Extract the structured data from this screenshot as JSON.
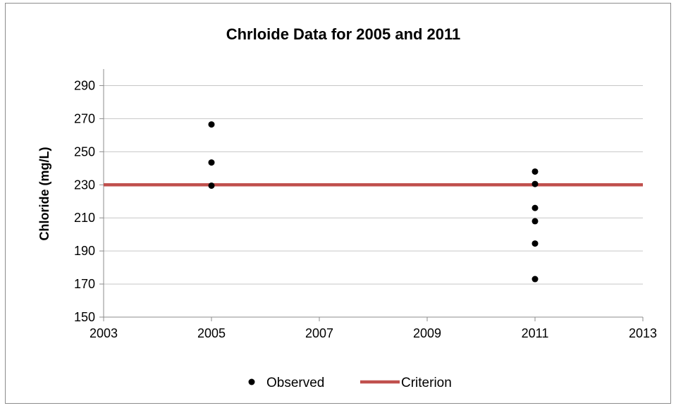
{
  "chart_data": {
    "type": "scatter",
    "title": "Chrloide Data for 2005 and 2011",
    "xlabel": "",
    "ylabel": "Chloride (mg/L)",
    "xlim": [
      2003,
      2013
    ],
    "ylim": [
      150,
      300
    ],
    "xticks": [
      2003,
      2005,
      2007,
      2009,
      2011,
      2013
    ],
    "yticks": [
      150,
      170,
      190,
      210,
      230,
      250,
      270,
      290
    ],
    "grid": "horizontal",
    "legend_position": "bottom",
    "series": [
      {
        "name": "Observed",
        "kind": "scatter",
        "color": "#000000",
        "points": [
          {
            "x": 2005,
            "y": 266.5
          },
          {
            "x": 2005,
            "y": 243.5
          },
          {
            "x": 2005,
            "y": 229.5
          },
          {
            "x": 2011,
            "y": 238
          },
          {
            "x": 2011,
            "y": 230.5
          },
          {
            "x": 2011,
            "y": 216
          },
          {
            "x": 2011,
            "y": 208
          },
          {
            "x": 2011,
            "y": 194.5
          },
          {
            "x": 2011,
            "y": 173
          }
        ]
      },
      {
        "name": "Criterion",
        "kind": "line",
        "color": "#c0504d",
        "points": [
          {
            "x": 2003,
            "y": 230
          },
          {
            "x": 2013,
            "y": 230
          }
        ]
      }
    ]
  }
}
